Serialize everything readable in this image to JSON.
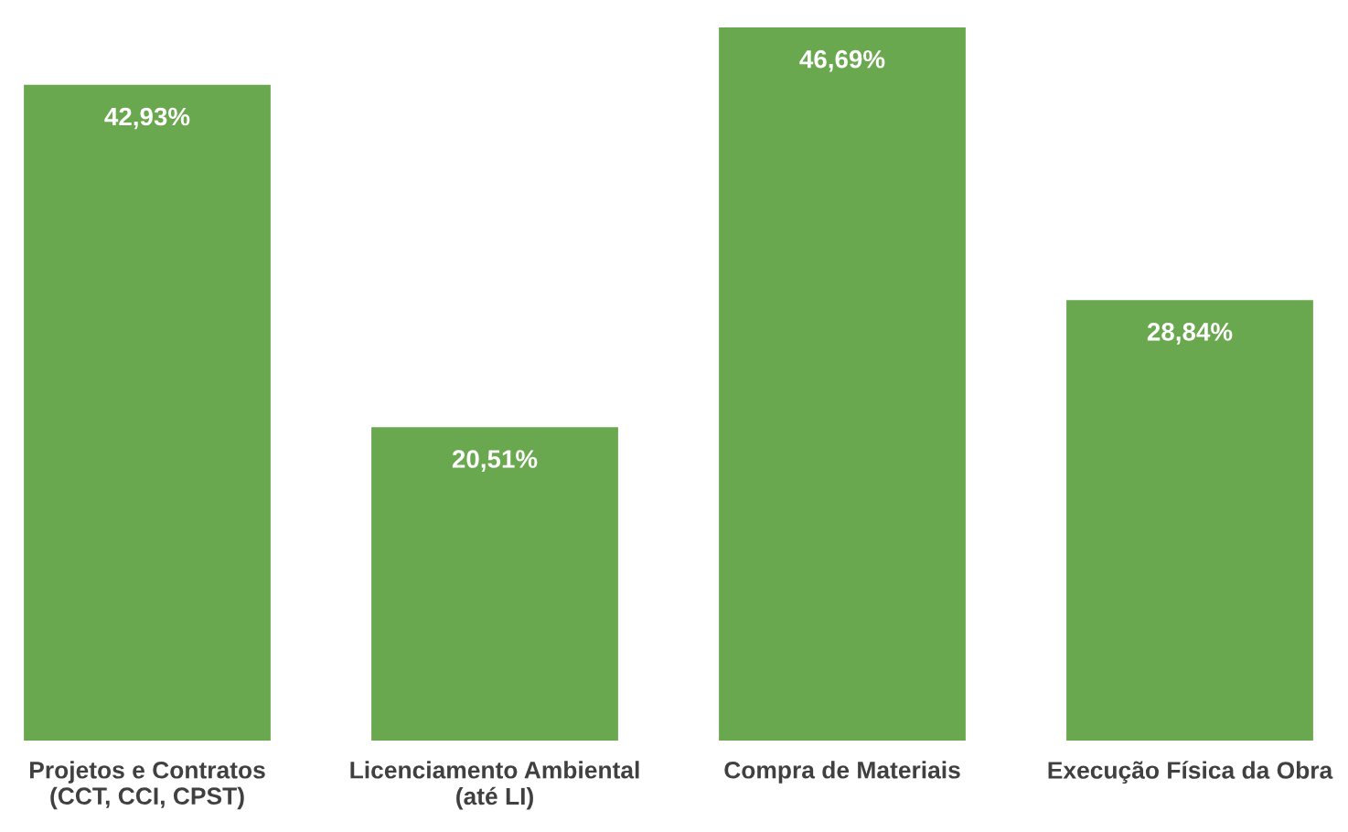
{
  "chart_data": {
    "type": "bar",
    "categories": [
      "Projetos e Contratos\n(CCT, CCI, CPST)",
      "Licenciamento Ambiental\n(até LI)",
      "Compra de Materiais",
      "Execução Física da Obra"
    ],
    "values": [
      42.93,
      20.51,
      46.69,
      28.84
    ],
    "value_labels": [
      "42,93%",
      "20,51%",
      "46,69%",
      "28,84%"
    ],
    "color": "#6aa84f",
    "grid": false,
    "legend": false
  }
}
